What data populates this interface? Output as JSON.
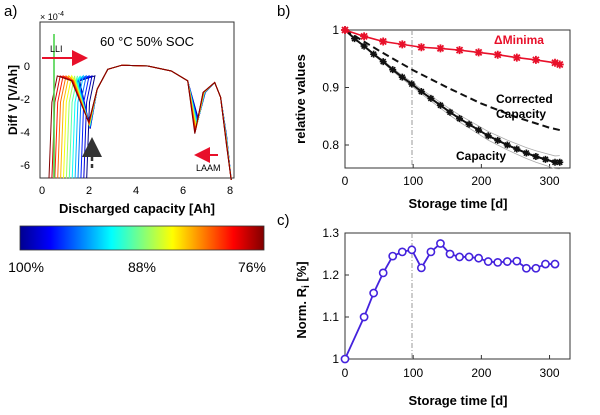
{
  "colors": {
    "red_series": "#e8102a",
    "black_series": "#111111",
    "purple_series": "#4422dd",
    "arrow_red": "#e8102a",
    "llil_green": "#4cd44c"
  },
  "panel_a": {
    "letter": "a)",
    "title": "60 °C 50% SOC",
    "scale": "× 10",
    "scale_exp": "-4",
    "xlabel": "Discharged capacity [Ah]",
    "ylabel": "Diff V [V/Ah]",
    "xticks": [
      "0",
      "2",
      "4",
      "6",
      "8"
    ],
    "yticks": [
      "0",
      "-2",
      "-4",
      "-6"
    ],
    "llil": "LLI",
    "laam": "LAAM"
  },
  "colorbar": {
    "labels": [
      "100%",
      "88%",
      "76%"
    ]
  },
  "panel_b": {
    "letter": "b)",
    "ylabel": "relative values",
    "xlabel": "Storage time [d]",
    "xticks": [
      "0",
      "100",
      "200",
      "300"
    ],
    "yticks": [
      "1",
      "0.9",
      "0.8"
    ],
    "label_minima": "ΔMinima",
    "label_corrected_line1": "Corrected",
    "label_corrected_line2": "Capacity",
    "label_capacity": "Capacity"
  },
  "panel_c": {
    "letter": "c)",
    "ylabel": "Norm. R",
    "ylabel_sub": "i",
    "ylabel_unit": " [%]",
    "xlabel": "Storage time [d]",
    "xticks": [
      "0",
      "100",
      "200",
      "300"
    ],
    "yticks": [
      "1.3",
      "1.2",
      "1.1",
      "1"
    ]
  },
  "chart_data": [
    {
      "type": "line",
      "panel": "b",
      "xlabel": "Storage time [d]",
      "ylabel": "relative values",
      "xlim": [
        0,
        330
      ],
      "ylim": [
        0.76,
        1.0
      ],
      "grid": false,
      "series": [
        {
          "name": "ΔMinima",
          "x": [
            0,
            28,
            56,
            84,
            112,
            140,
            168,
            196,
            224,
            252,
            280,
            308,
            315
          ],
          "y": [
            1.0,
            0.989,
            0.98,
            0.975,
            0.97,
            0.968,
            0.965,
            0.961,
            0.957,
            0.952,
            0.948,
            0.943,
            0.94
          ]
        },
        {
          "name": "Capacity",
          "x": [
            0,
            14,
            28,
            42,
            56,
            70,
            84,
            98,
            112,
            126,
            140,
            154,
            168,
            182,
            196,
            210,
            224,
            238,
            252,
            266,
            280,
            294,
            308,
            315
          ],
          "y": [
            1.0,
            0.985,
            0.972,
            0.958,
            0.945,
            0.931,
            0.918,
            0.906,
            0.893,
            0.881,
            0.869,
            0.857,
            0.846,
            0.836,
            0.826,
            0.816,
            0.808,
            0.8,
            0.793,
            0.786,
            0.78,
            0.775,
            0.77,
            0.77
          ]
        },
        {
          "name": "Corrected Capacity",
          "x": [
            0,
            50,
            100,
            150,
            200,
            250,
            300,
            315
          ],
          "y": [
            1.0,
            0.964,
            0.93,
            0.9,
            0.872,
            0.849,
            0.83,
            0.826
          ]
        }
      ]
    },
    {
      "type": "line",
      "panel": "c",
      "xlabel": "Storage time [d]",
      "ylabel": "Norm. Ri [%]",
      "xlim": [
        0,
        330
      ],
      "ylim": [
        1.0,
        1.3
      ],
      "grid": false,
      "series": [
        {
          "x": [
            0,
            28,
            42,
            56,
            70,
            84,
            98,
            112,
            126,
            140,
            154,
            168,
            182,
            196,
            210,
            224,
            238,
            252,
            266,
            280,
            294,
            308
          ],
          "y": [
            1.0,
            1.1,
            1.157,
            1.205,
            1.245,
            1.255,
            1.26,
            1.217,
            1.255,
            1.275,
            1.25,
            1.243,
            1.243,
            1.24,
            1.232,
            1.23,
            1.232,
            1.233,
            1.216,
            1.216,
            1.226,
            1.226
          ]
        }
      ]
    }
  ]
}
